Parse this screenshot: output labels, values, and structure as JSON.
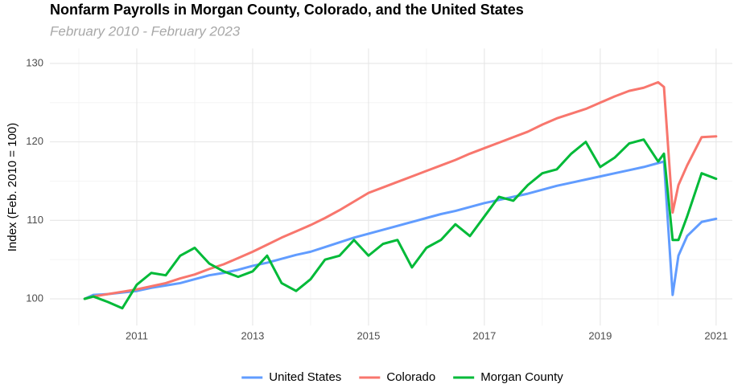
{
  "chart_data": {
    "type": "line",
    "title": "Nonfarm Payrolls in Morgan County, Colorado, and the United States",
    "subtitle": "February 2010 - February 2023",
    "y_label": "Index (Feb. 2010 = 100)",
    "x": [
      2010.1,
      2010.25,
      2010.5,
      2010.75,
      2011,
      2011.25,
      2011.5,
      2011.75,
      2012,
      2012.25,
      2012.5,
      2012.75,
      2013,
      2013.25,
      2013.5,
      2013.75,
      2014,
      2014.25,
      2014.5,
      2014.75,
      2015,
      2015.25,
      2015.5,
      2015.75,
      2016,
      2016.25,
      2016.5,
      2016.75,
      2017,
      2017.25,
      2017.5,
      2017.75,
      2018,
      2018.25,
      2018.5,
      2018.75,
      2019,
      2019.25,
      2019.5,
      2019.75,
      2020,
      2020.1,
      2020.25,
      2020.35,
      2020.5,
      2020.75,
      2021
    ],
    "series": [
      {
        "name": "United States",
        "color": "#619cff",
        "values": [
          100,
          100.5,
          100.6,
          100.8,
          101.0,
          101.4,
          101.7,
          102.0,
          102.5,
          103.0,
          103.3,
          103.7,
          104.2,
          104.6,
          105.1,
          105.6,
          106.0,
          106.6,
          107.2,
          107.8,
          108.3,
          108.8,
          109.3,
          109.8,
          110.3,
          110.8,
          111.2,
          111.7,
          112.2,
          112.6,
          113.0,
          113.4,
          113.9,
          114.4,
          114.8,
          115.2,
          115.6,
          116.0,
          116.4,
          116.8,
          117.3,
          117.5,
          100.5,
          105.5,
          108.0,
          109.8,
          110.2
        ]
      },
      {
        "name": "Colorado",
        "color": "#f8766d",
        "values": [
          100,
          100.3,
          100.6,
          100.9,
          101.2,
          101.6,
          102.0,
          102.6,
          103.1,
          103.8,
          104.4,
          105.2,
          106.0,
          106.9,
          107.8,
          108.6,
          109.4,
          110.3,
          111.3,
          112.4,
          113.5,
          114.2,
          114.9,
          115.6,
          116.3,
          117.0,
          117.7,
          118.5,
          119.2,
          119.9,
          120.6,
          121.3,
          122.2,
          123.0,
          123.6,
          124.2,
          125.0,
          125.8,
          126.5,
          126.9,
          127.6,
          127.0,
          111.0,
          114.5,
          117.0,
          120.6,
          120.7
        ]
      },
      {
        "name": "Morgan County",
        "color": "#00ba38",
        "values": [
          100,
          100.3,
          99.6,
          98.8,
          101.8,
          103.3,
          103.0,
          105.5,
          106.5,
          104.5,
          103.5,
          102.8,
          103.5,
          105.5,
          102.0,
          101.0,
          102.5,
          105.0,
          105.5,
          107.5,
          105.5,
          107.0,
          107.5,
          104.0,
          106.5,
          107.5,
          109.5,
          108.0,
          110.5,
          113.0,
          112.5,
          114.5,
          116.0,
          116.5,
          118.5,
          120.0,
          116.8,
          118.0,
          119.8,
          120.3,
          117.5,
          118.5,
          107.5,
          107.5,
          110.5,
          116.0,
          115.3
        ]
      }
    ],
    "xlim": [
      2009.5,
      2021.28
    ],
    "xticks": [
      2011,
      2013,
      2015,
      2017,
      2019,
      2021
    ],
    "ylim": [
      96.6,
      131.9
    ],
    "yticks": [
      100,
      110,
      120,
      130
    ],
    "grid": true,
    "legend": "bottom"
  }
}
